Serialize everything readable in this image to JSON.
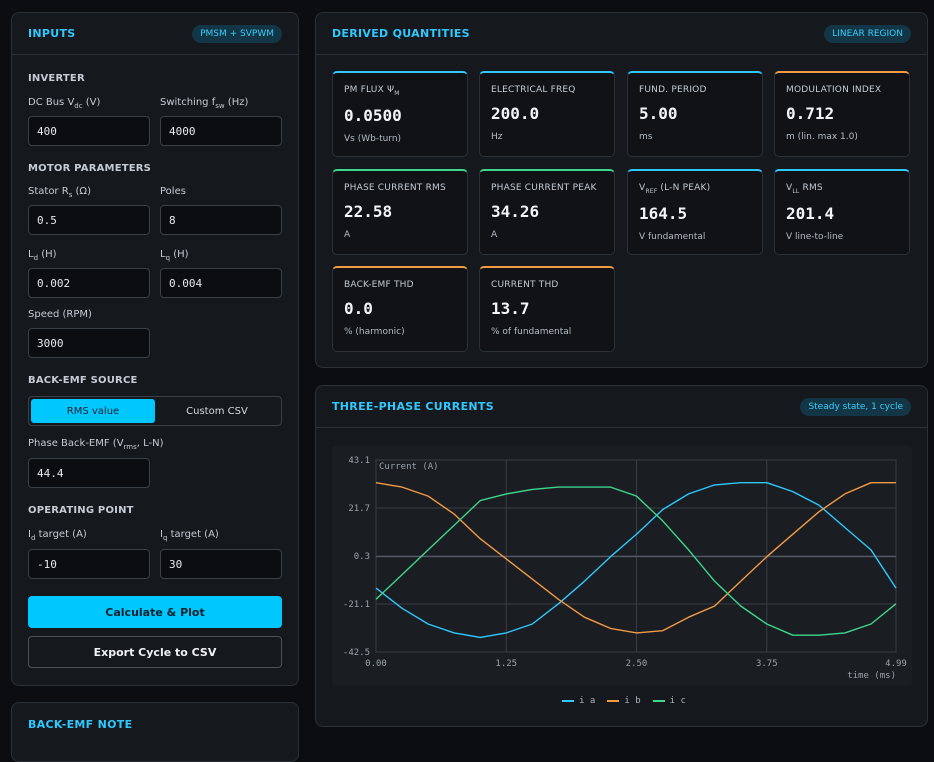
{
  "inputs": {
    "title": "INPUTS",
    "badge": "PMSM + SVPWM",
    "inverter_heading": "INVERTER",
    "dc_bus": {
      "label_pre": "DC Bus V",
      "label_sub": "dc",
      "label_post": " (V)",
      "value": "400"
    },
    "fsw": {
      "label_pre": "Switching f",
      "label_sub": "sw",
      "label_post": " (Hz)",
      "value": "4000"
    },
    "motor_heading": "MOTOR PARAMETERS",
    "rs": {
      "label_pre": "Stator R",
      "label_sub": "s",
      "label_post": " (Ω)",
      "value": "0.5"
    },
    "poles": {
      "label": "Poles",
      "value": "8"
    },
    "ld": {
      "label_pre": "L",
      "label_sub": "d",
      "label_post": " (H)",
      "value": "0.002"
    },
    "lq": {
      "label_pre": "L",
      "label_sub": "q",
      "label_post": " (H)",
      "value": "0.004"
    },
    "speed": {
      "label": "Speed (RPM)",
      "value": "3000"
    },
    "bemf_heading": "BACK-EMF SOURCE",
    "bemf_options": [
      "RMS value",
      "Custom CSV"
    ],
    "bemf": {
      "label_pre": "Phase Back-EMF (V",
      "label_sub": "rms",
      "label_post": ", L-N)",
      "value": "44.4"
    },
    "op_heading": "OPERATING POINT",
    "id_target": {
      "label_pre": "I",
      "label_sub": "d",
      "label_post": " target (A)",
      "value": "-10"
    },
    "iq_target": {
      "label_pre": "I",
      "label_sub": "q",
      "label_post": " target (A)",
      "value": "30"
    },
    "calc_button": "Calculate & Plot",
    "export_button": "Export Cycle to CSV"
  },
  "note_panel": {
    "title": "BACK-EMF NOTE"
  },
  "derived": {
    "title": "DERIVED QUANTITIES",
    "badge": "LINEAR REGION",
    "cards": [
      {
        "label": "PM FLUX Ψ",
        "label_sub": "M",
        "label_post": "",
        "value": "0.0500",
        "unit": "Vs (Wb-turn)",
        "accent": "#2fc8ff"
      },
      {
        "label": "ELECTRICAL FREQ",
        "label_sub": "",
        "label_post": "",
        "value": "200.0",
        "unit": "Hz",
        "accent": "#2fc8ff"
      },
      {
        "label": "FUND. PERIOD",
        "label_sub": "",
        "label_post": "",
        "value": "5.00",
        "unit": "ms",
        "accent": "#2fc8ff"
      },
      {
        "label": "MODULATION INDEX",
        "label_sub": "",
        "label_post": "",
        "value": "0.712",
        "unit": "m (lin. max 1.0)",
        "accent": "#f29a44"
      },
      {
        "label": "PHASE CURRENT RMS",
        "label_sub": "",
        "label_post": "",
        "value": "22.58",
        "unit": "A",
        "accent": "#3dd68c"
      },
      {
        "label": "PHASE CURRENT PEAK",
        "label_sub": "",
        "label_post": "",
        "value": "34.26",
        "unit": "A",
        "accent": "#3dd68c"
      },
      {
        "label": "V",
        "label_sub": "REF",
        "label_post": " (L-N PEAK)",
        "value": "164.5",
        "unit": "V fundamental",
        "accent": "#2fc8ff"
      },
      {
        "label": "V",
        "label_sub": "LL",
        "label_post": " RMS",
        "value": "201.4",
        "unit": "V line-to-line",
        "accent": "#2fc8ff"
      },
      {
        "label": "BACK-EMF THD",
        "label_sub": "",
        "label_post": "",
        "value": "0.0",
        "unit": "% (harmonic)",
        "accent": "#f29a44"
      },
      {
        "label": "CURRENT THD",
        "label_sub": "",
        "label_post": "",
        "value": "13.7",
        "unit": "% of fundamental",
        "accent": "#f29a44"
      }
    ]
  },
  "currents": {
    "title": "THREE-PHASE CURRENTS",
    "badge": "Steady state, 1 cycle"
  },
  "chart_data": {
    "type": "line",
    "title": "Current (A)",
    "xlabel": "time (ms)",
    "ylabel": "Current (A)",
    "xlim": [
      0,
      4.99
    ],
    "ylim": [
      -42.5,
      43.1
    ],
    "xticks": [
      "0.00",
      "1.25",
      "2.50",
      "3.75",
      "4.99"
    ],
    "yticks": [
      "43.1",
      "21.7",
      "0.3",
      "-21.1",
      "-42.5"
    ],
    "grid": true,
    "legend_position": "bottom-center",
    "x": [
      0.0,
      0.25,
      0.5,
      0.75,
      1.0,
      1.25,
      1.5,
      1.75,
      2.0,
      2.25,
      2.5,
      2.75,
      3.0,
      3.25,
      3.5,
      3.75,
      4.0,
      4.25,
      4.5,
      4.75,
      4.99
    ],
    "series": [
      {
        "name": "i a",
        "color": "#2fc8ff",
        "values": [
          -14,
          -23,
          -30,
          -34,
          -36,
          -34,
          -30,
          -21,
          -11,
          0,
          10,
          21,
          28,
          32,
          33,
          33,
          29,
          23,
          13,
          3,
          -14
        ]
      },
      {
        "name": "i b",
        "color": "#f29a44",
        "values": [
          33,
          31,
          27,
          19,
          8,
          -1,
          -10,
          -19,
          -27,
          -32,
          -34,
          -33,
          -27,
          -22,
          -11,
          0,
          10,
          20,
          28,
          33,
          33
        ]
      },
      {
        "name": "i c",
        "color": "#3dd68c",
        "values": [
          -19,
          -8,
          3,
          14,
          25,
          28,
          30,
          31,
          31,
          31,
          27,
          16,
          3,
          -11,
          -22,
          -30,
          -35,
          -35,
          -34,
          -30,
          -21
        ]
      }
    ]
  }
}
